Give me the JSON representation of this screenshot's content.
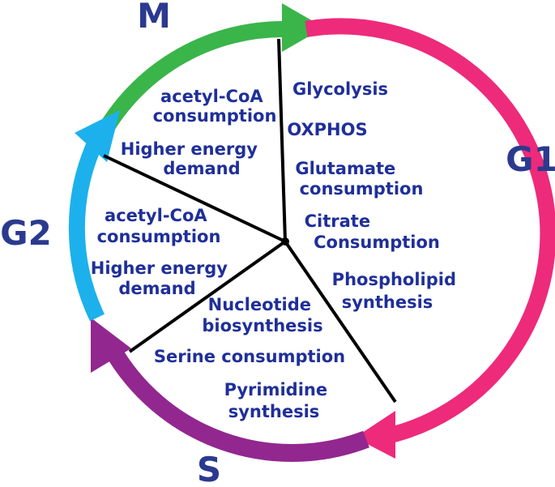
{
  "phases": {
    "m": "M",
    "g1": "G1",
    "s": "S",
    "g2": "G2"
  },
  "colors": {
    "m": "#3ab54a",
    "g1": "#ee2a7b",
    "s": "#92278f",
    "g2": "#1cb1ec",
    "text": "#1f2f99",
    "phase_text": "#2b3a8f",
    "divider": "#000000"
  },
  "sectors": {
    "m": {
      "items": [
        [
          "acetyl-CoA",
          "consumption"
        ],
        [
          "Higher energy",
          "demand"
        ]
      ]
    },
    "g1": {
      "items": [
        [
          "Glycolysis"
        ],
        [
          "OXPHOS"
        ],
        [
          "Glutamate",
          "consumption"
        ],
        [
          "Citrate",
          "Consumption"
        ],
        [
          "Phospholipid",
          "synthesis"
        ]
      ]
    },
    "s": {
      "items": [
        [
          "Nucleotide",
          "biosynthesis"
        ],
        [
          "Serine consumption"
        ],
        [
          "Pyrimidine",
          "synthesis"
        ]
      ]
    },
    "g2": {
      "items": [
        [
          "acetyl-CoA",
          "consumption"
        ],
        [
          "Higher energy",
          "demand"
        ]
      ]
    }
  }
}
